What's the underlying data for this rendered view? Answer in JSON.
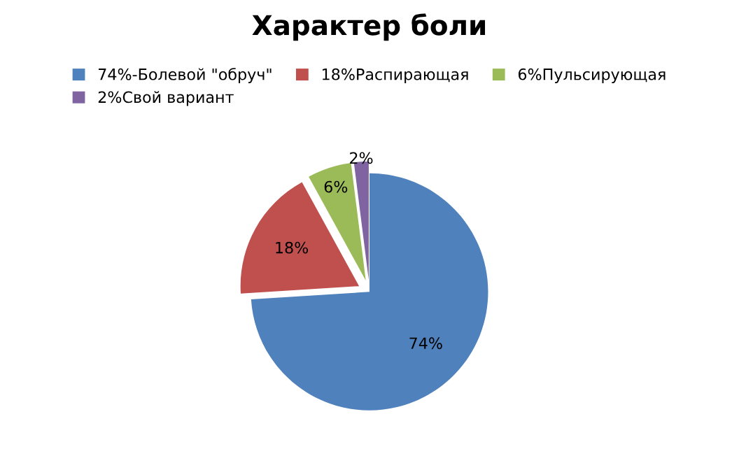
{
  "chart_data": {
    "type": "pie",
    "title": "Характер боли",
    "categories": [
      "74%-Болевой \"обруч\"",
      "18%Распирающая",
      "6%Пульсирующая",
      "2%Свой вариант"
    ],
    "values": [
      74,
      18,
      6,
      2
    ],
    "colors": [
      "#4f81bd",
      "#c0504d",
      "#9bbb59",
      "#8064a2"
    ],
    "value_labels": [
      "74%",
      "18%",
      "6%",
      "2%"
    ],
    "legend": "top"
  }
}
